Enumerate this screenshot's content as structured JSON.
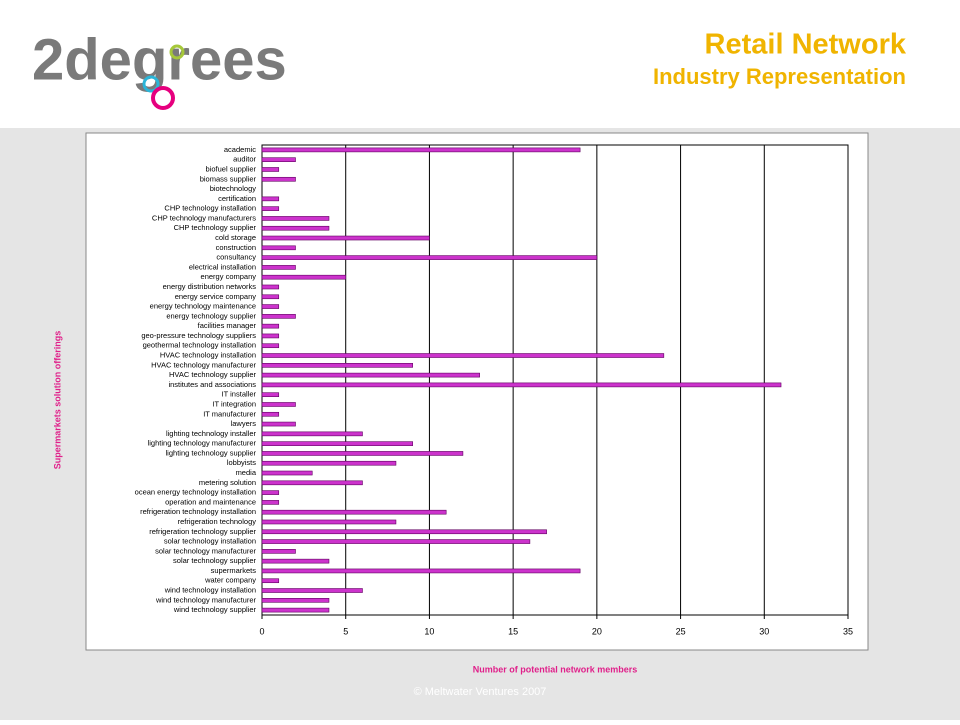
{
  "header": {
    "logo": "2degrees",
    "title": "Retail Network",
    "subtitle": "Industry Representation"
  },
  "footer": "© Meltwater Ventures 2007",
  "chart_data": {
    "type": "bar",
    "orientation": "horizontal",
    "xlabel": "Number of potential network members",
    "ylabel": "Supermarkets solution offerings",
    "categories": [
      "academic",
      "auditor",
      "biofuel supplier",
      "biomass supplier",
      "biotechnology",
      "certification",
      "CHP technology installation",
      "CHP technology manufacturers",
      "CHP technology supplier",
      "cold storage",
      "construction",
      "consultancy",
      "electrical installation",
      "energy company",
      "energy distribution networks",
      "energy service company",
      "energy technology maintenance",
      "energy technology supplier",
      "facilities manager",
      "geo-pressure technology suppliers",
      "geothermal technology installation",
      "HVAC technology installation",
      "HVAC technology manufacturer",
      "HVAC technology supplier",
      "institutes and associations",
      "IT installer",
      "IT integration",
      "IT manufacturer",
      "lawyers",
      "lighting technology installer",
      "lighting technology manufacturer",
      "lighting technology supplier",
      "lobbyists",
      "media",
      "metering solution",
      "ocean energy technology installation",
      "operation and maintenance",
      "refrigeration technology installation",
      "refrigeration technology",
      "refrigeration technology supplier",
      "solar technology installation",
      "solar technology manufacturer",
      "solar technology supplier",
      "supermarkets",
      "water company",
      "wind technology installation",
      "wind technology manufacturer",
      "wind technology supplier"
    ],
    "values": [
      19,
      2,
      1,
      2,
      0,
      1,
      1,
      4,
      4,
      10,
      2,
      20,
      2,
      5,
      1,
      1,
      1,
      2,
      1,
      1,
      1,
      24,
      9,
      13,
      31,
      1,
      2,
      1,
      2,
      6,
      9,
      12,
      8,
      3,
      6,
      1,
      1,
      11,
      8,
      17,
      16,
      2,
      4,
      19,
      1,
      6,
      4,
      4
    ],
    "color": "#cc33cc",
    "xlim": [
      0,
      35
    ],
    "xticks": [
      0,
      5,
      10,
      15,
      20,
      25,
      30,
      35
    ],
    "grid": true
  }
}
